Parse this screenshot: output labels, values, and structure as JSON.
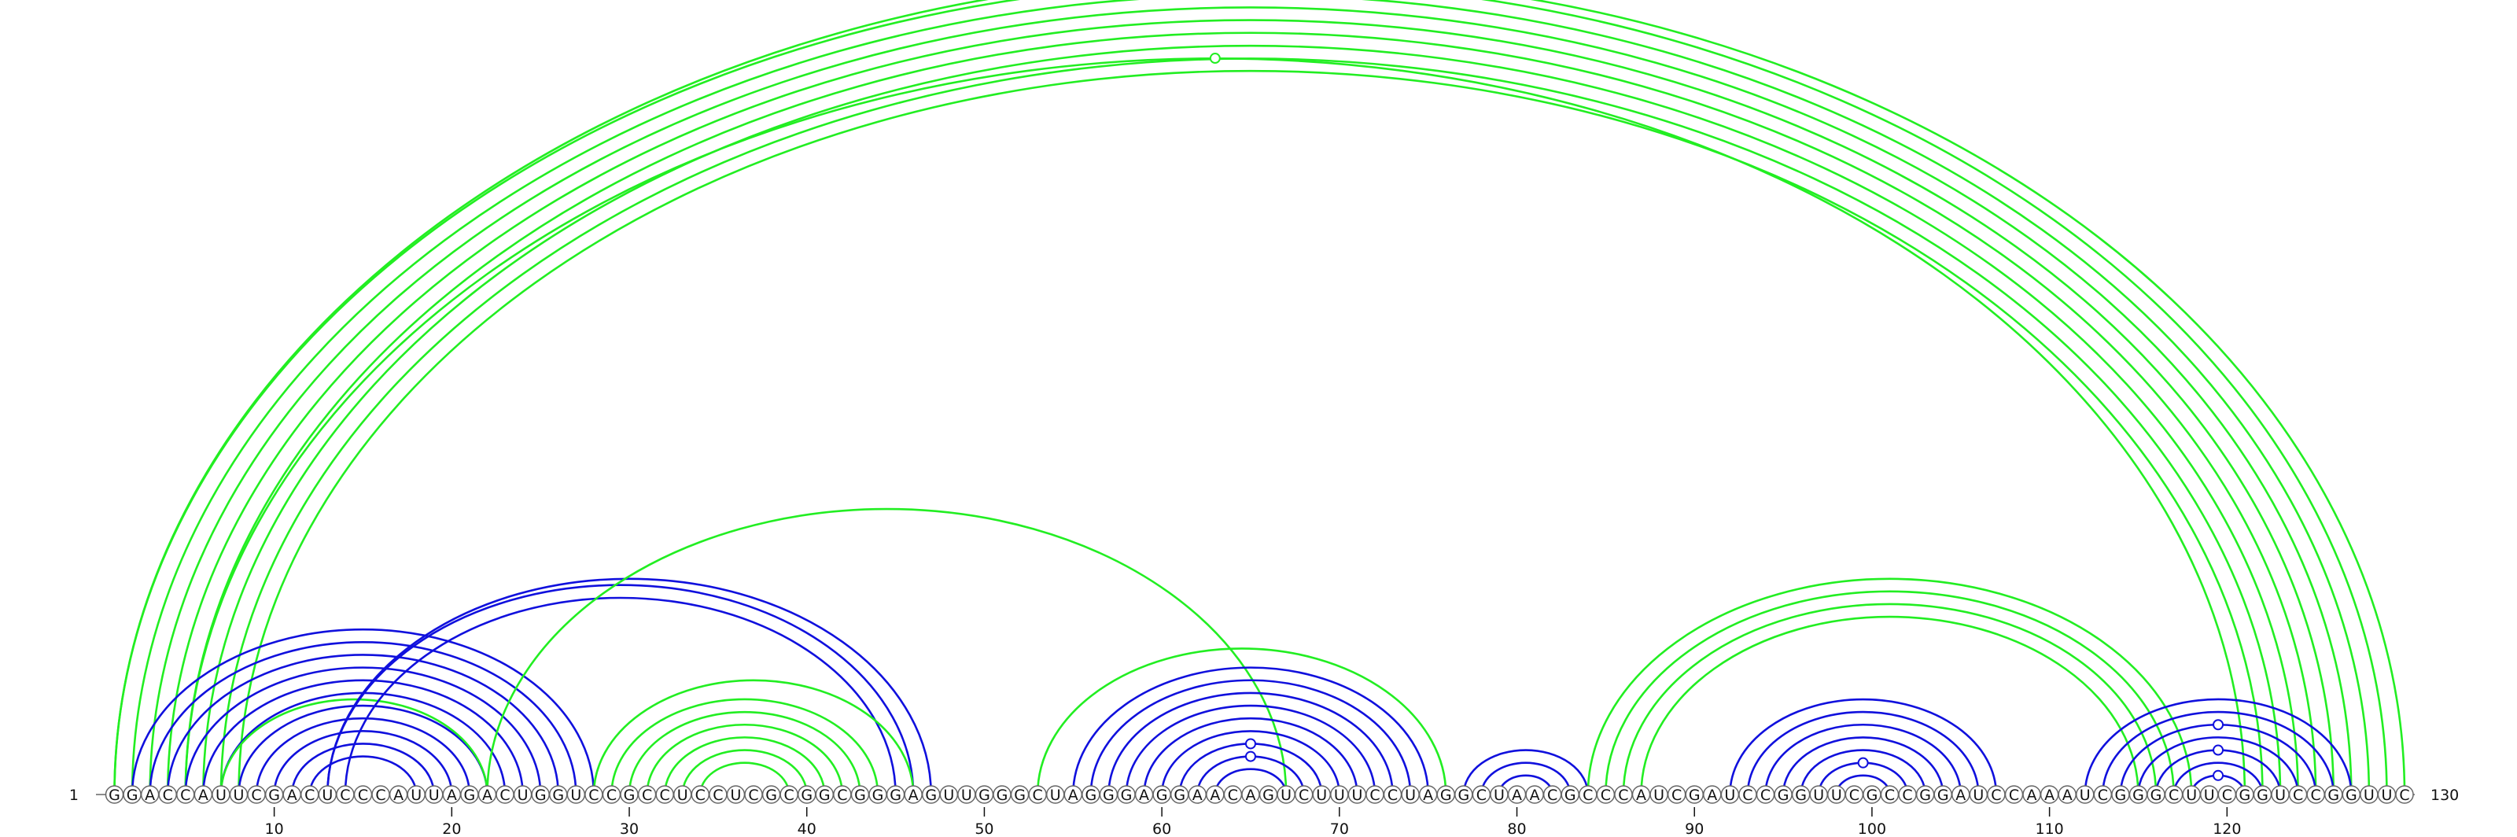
{
  "sequence": "GGACCAUUCGACUCCCAUUAGACUGGUCCGCCUCCUCGCGGCGGGAGUUGGGCUAGGGAGGAACAGUCUUUCCUAGGCUAACGCCCAUCGAUCCGGUUCGCCGGAUCCAAAUCGGGCUUCGGUCCGGUUC",
  "start_label": "1",
  "end_label": "130",
  "position_labels": [
    "10",
    "20",
    "30",
    "40",
    "50",
    "60",
    "70",
    "80",
    "90",
    "100",
    "110",
    "120"
  ],
  "colors": {
    "blue": "#1010dd",
    "green": "#22ee22"
  },
  "arc_groups": [
    {
      "color": "green",
      "pairs": [
        [
          1,
          130
        ],
        [
          1,
          129
        ],
        [
          2,
          128
        ],
        [
          3,
          127
        ],
        [
          4,
          126
        ],
        [
          5,
          125
        ],
        [
          6,
          124
        ],
        [
          7,
          123
        ],
        [
          8,
          122
        ],
        [
          5,
          121
        ]
      ]
    },
    {
      "color": "blue",
      "pairs": [
        [
          2,
          28
        ],
        [
          3,
          27
        ],
        [
          4,
          26
        ],
        [
          5,
          25
        ],
        [
          6,
          24
        ],
        [
          7,
          23
        ],
        [
          8,
          22
        ],
        [
          9,
          21
        ],
        [
          10,
          20
        ],
        [
          11,
          19
        ],
        [
          12,
          18
        ]
      ]
    },
    {
      "color": "green",
      "pairs": [
        [
          7,
          22
        ]
      ]
    },
    {
      "color": "blue",
      "pairs": [
        [
          13,
          47
        ],
        [
          13,
          46
        ],
        [
          14,
          45
        ]
      ]
    },
    {
      "color": "green",
      "pairs": [
        [
          22,
          67
        ]
      ]
    },
    {
      "color": "green",
      "pairs": [
        [
          28,
          46
        ],
        [
          29,
          44
        ],
        [
          30,
          43
        ],
        [
          31,
          42
        ],
        [
          32,
          41
        ],
        [
          33,
          40
        ],
        [
          34,
          39
        ]
      ]
    },
    {
      "color": "green",
      "pairs": [
        [
          53,
          76
        ]
      ]
    },
    {
      "color": "blue",
      "pairs": [
        [
          55,
          75
        ],
        [
          56,
          74
        ],
        [
          57,
          73
        ],
        [
          58,
          72
        ],
        [
          59,
          71
        ],
        [
          60,
          70
        ],
        [
          61,
          69
        ],
        [
          62,
          68
        ],
        [
          63,
          67
        ]
      ]
    },
    {
      "color": "blue",
      "pairs": [
        [
          77,
          84
        ],
        [
          78,
          83
        ],
        [
          79,
          82
        ]
      ]
    },
    {
      "color": "green",
      "pairs": [
        [
          84,
          118
        ],
        [
          85,
          117
        ],
        [
          86,
          116
        ],
        [
          87,
          115
        ]
      ]
    },
    {
      "color": "blue",
      "pairs": [
        [
          92,
          107
        ],
        [
          93,
          106
        ],
        [
          94,
          105
        ],
        [
          95,
          104
        ],
        [
          96,
          103
        ],
        [
          97,
          102
        ],
        [
          98,
          101
        ]
      ]
    },
    {
      "color": "blue",
      "pairs": [
        [
          112,
          127
        ],
        [
          113,
          126
        ],
        [
          114,
          125
        ],
        [
          115,
          124
        ],
        [
          116,
          123
        ],
        [
          117,
          122
        ],
        [
          118,
          121
        ]
      ]
    }
  ],
  "markers": [
    {
      "color": "green",
      "pair": [
        5,
        121
      ]
    },
    {
      "color": "blue",
      "pair": [
        61,
        69
      ]
    },
    {
      "color": "blue",
      "pair": [
        62,
        68
      ]
    },
    {
      "color": "blue",
      "pair": [
        97,
        102
      ]
    },
    {
      "color": "blue",
      "pair": [
        114,
        125
      ]
    },
    {
      "color": "blue",
      "pair": [
        116,
        123
      ]
    },
    {
      "color": "blue",
      "pair": [
        118,
        121
      ]
    }
  ]
}
